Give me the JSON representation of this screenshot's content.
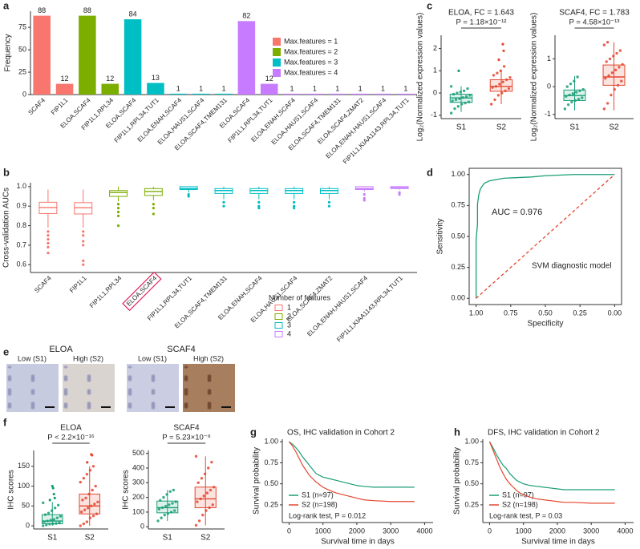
{
  "chart_data": [
    {
      "type": "bar",
      "panel": "a",
      "y_label": "Frequency",
      "categories": [
        "SCAF4",
        "FIP1L1",
        "ELOA,SCAF4",
        "FIP1L1,RPL34",
        "ELOA,SCAF4",
        "FIP1L1,RPL34,TUT1",
        "ELOA,ENAH,SCAF4",
        "ELOA,HAUS1,SCAF4",
        "ELOA,SCAF4,TMEM131",
        "ELOA,SCAF4",
        "FIP1L1,RPL34,TUT1",
        "ELOA,ENAH,SCAF4",
        "ELOA,HAUS1,SCAF4",
        "ELOA,SCAF4,TMEM131",
        "ELOA,SCAF4,ZMAT2",
        "ELOA,ENAH,HAUS1,SCAF4",
        "FIP1L1,KIAA1143,RPL34,TUT1"
      ],
      "values": [
        88,
        12,
        88,
        12,
        84,
        13,
        1,
        1,
        1,
        82,
        12,
        1,
        1,
        1,
        1,
        1,
        1
      ],
      "colors": [
        "#F8766D",
        "#F8766D",
        "#7CAE00",
        "#7CAE00",
        "#00BFC4",
        "#00BFC4",
        "#00BFC4",
        "#00BFC4",
        "#00BFC4",
        "#C77CFF",
        "#C77CFF",
        "#C77CFF",
        "#C77CFF",
        "#C77CFF",
        "#C77CFF",
        "#C77CFF",
        "#C77CFF"
      ],
      "ylim": [
        0,
        93
      ],
      "yticks": [
        0,
        25,
        50,
        75
      ],
      "legend": [
        {
          "name": "Max.features = 1",
          "color": "#F8766D"
        },
        {
          "name": "Max.features = 2",
          "color": "#7CAE00"
        },
        {
          "name": "Max.features = 3",
          "color": "#00BFC4"
        },
        {
          "name": "Max.features = 4",
          "color": "#C77CFF"
        }
      ]
    },
    {
      "type": "box",
      "panel": "b",
      "y_label": "Cross-validation AUCs",
      "categories": [
        "SCAF4",
        "FIP1L1",
        "FIP1L1,RPL34",
        "ELOA,SCAF4",
        "FIP1L1,RPL34,TUT1",
        "ELOA,SCAF4,TMEM131",
        "ELOA,ENAH,SCAF4",
        "ELOA,HAUS1,SCAF4",
        "ELOA,SCAF4,ZMAT2",
        "ELOA,ENAH,HAUS1,SCAF4",
        "FIP1L1,KIAA1143,RPL34,TUT1"
      ],
      "colors": [
        "#F8766D",
        "#F8766D",
        "#7CAE00",
        "#7CAE00",
        "#00BFC4",
        "#00BFC4",
        "#00BFC4",
        "#00BFC4",
        "#00BFC4",
        "#C77CFF",
        "#C77CFF"
      ],
      "boxes": [
        {
          "low": 0.79,
          "q1": 0.862,
          "median": 0.893,
          "q3": 0.92,
          "high": 0.985,
          "outliers": [
            0.77,
            0.75,
            0.73,
            0.71,
            0.69,
            0.66
          ]
        },
        {
          "low": 0.79,
          "q1": 0.86,
          "median": 0.892,
          "q3": 0.918,
          "high": 0.985,
          "outliers": [
            0.77,
            0.75,
            0.72,
            0.7,
            0.62,
            0.6
          ]
        },
        {
          "low": 0.925,
          "q1": 0.95,
          "median": 0.97,
          "q3": 0.98,
          "high": 1,
          "outliers": [
            0.91,
            0.89,
            0.87,
            0.85,
            0.8
          ]
        },
        {
          "low": 0.93,
          "q1": 0.955,
          "median": 0.975,
          "q3": 0.99,
          "high": 1,
          "outliers": [
            0.91,
            0.89,
            0.86
          ]
        },
        {
          "low": 0.97,
          "q1": 0.985,
          "median": 0.99,
          "q3": 1,
          "high": 1,
          "outliers": [
            0.96,
            0.95
          ]
        },
        {
          "low": 0.935,
          "q1": 0.965,
          "median": 0.98,
          "q3": 0.99,
          "high": 1,
          "outliers": [
            0.92,
            0.9
          ]
        },
        {
          "low": 0.935,
          "q1": 0.965,
          "median": 0.98,
          "q3": 0.99,
          "high": 1,
          "outliers": [
            0.92,
            0.9,
            0.89
          ]
        },
        {
          "low": 0.935,
          "q1": 0.965,
          "median": 0.98,
          "q3": 0.99,
          "high": 1,
          "outliers": [
            0.92,
            0.9,
            0.89
          ]
        },
        {
          "low": 0.935,
          "q1": 0.965,
          "median": 0.98,
          "q3": 0.99,
          "high": 1,
          "outliers": [
            0.92,
            0.9
          ]
        },
        {
          "low": 0.975,
          "q1": 0.985,
          "median": 0.99,
          "q3": 1,
          "high": 1,
          "outliers": [
            0.96,
            0.94,
            0.93
          ]
        },
        {
          "low": 0.985,
          "q1": 0.99,
          "median": 0.995,
          "q3": 1,
          "high": 1,
          "outliers": [
            0.97,
            0.96
          ]
        }
      ],
      "highlight": 3,
      "ylim": [
        0.56,
        1.02
      ],
      "yticks": [
        0.6,
        0.7,
        0.8,
        0.9,
        {
          "value": 1,
          "label": "1.0"
        }
      ],
      "legend_title": "Number of features",
      "legend": [
        {
          "name": "1",
          "color": "#F8766D"
        },
        {
          "name": "2",
          "color": "#7CAE00"
        },
        {
          "name": "3",
          "color": "#00BFC4"
        },
        {
          "name": "4",
          "color": "#C77CFF"
        }
      ]
    },
    {
      "type": "box_jitter",
      "panel": "c",
      "title": "ELOA, FC = 1.643",
      "annotation": "P = 1.18×10⁻¹²",
      "y_label": "Log₂(Normalized expression values)",
      "categories": [
        "S1",
        "S2"
      ],
      "colors": [
        "#1A9E77",
        "#E4472F"
      ],
      "boxes": [
        {
          "low": -0.85,
          "q1": -0.42,
          "median": -0.22,
          "q3": -0.05,
          "high": 0.3,
          "outliers": [
            1.0
          ]
        },
        {
          "low": -0.5,
          "q1": 0.08,
          "median": 0.3,
          "q3": 0.6,
          "high": 1.05,
          "outliers": [
            1.5,
            1.9,
            2.2
          ]
        }
      ],
      "points": [
        [
          -0.9,
          -0.7,
          -0.6,
          -0.5,
          -0.45,
          -0.4,
          -0.35,
          -0.3,
          -0.25,
          -0.2,
          -0.15,
          -0.1,
          -0.05,
          0,
          0.05,
          0.1,
          0.2,
          0.3
        ],
        [
          -0.5,
          -0.3,
          -0.1,
          0,
          0.1,
          0.2,
          0.25,
          0.3,
          0.4,
          0.5,
          0.6,
          0.7,
          0.8,
          0.9,
          1.0,
          1.2
        ]
      ],
      "ylim": [
        -1.15,
        2.6
      ],
      "yticks": [
        -1,
        0,
        1,
        2
      ]
    },
    {
      "type": "box_jitter",
      "title": "SCAF4, FC = 1.783",
      "annotation": "P = 4.58×10⁻¹³",
      "y_label": "Log₂(Normalized expression values)",
      "categories": [
        "S1",
        "S2"
      ],
      "colors": [
        "#1A9E77",
        "#E4472F"
      ],
      "boxes": [
        {
          "low": -0.85,
          "q1": -0.5,
          "median": -0.32,
          "q3": -0.12,
          "high": 0.38,
          "outliers": []
        },
        {
          "low": -0.85,
          "q1": 0.05,
          "median": 0.35,
          "q3": 0.78,
          "high": 1.6,
          "outliers": []
        }
      ],
      "points": [
        [
          -0.8,
          -0.65,
          -0.55,
          -0.5,
          -0.45,
          -0.4,
          -0.35,
          -0.3,
          -0.25,
          -0.2,
          -0.15,
          -0.1,
          0,
          0.1,
          0.2,
          0.35
        ],
        [
          -0.8,
          -0.6,
          -0.3,
          -0.1,
          0.05,
          0.2,
          0.3,
          0.4,
          0.5,
          0.6,
          0.7,
          0.8,
          0.9,
          1.0,
          1.1,
          1.2,
          1.3,
          1.5,
          1.6
        ]
      ],
      "ylim": [
        -1.15,
        1.85
      ],
      "yticks": [
        -1,
        0,
        1
      ]
    },
    {
      "type": "line",
      "panel": "d",
      "x_label": "Specificity",
      "y_label": "Sensitivity",
      "annotation": "AUC = 0.976",
      "model_label": "SVM diagnostic model",
      "series": [
        {
          "color": "#1A9E77",
          "dash": false,
          "x": [
            1,
            1,
            0.99,
            0.99,
            0.98,
            0.97,
            0.96,
            0.94,
            0.9,
            0.8,
            0.6,
            0.5,
            0.3,
            0.1,
            0
          ],
          "y": [
            0,
            0.47,
            0.6,
            0.76,
            0.84,
            0.88,
            0.9,
            0.93,
            0.95,
            0.97,
            0.98,
            0.99,
            1,
            1,
            1
          ]
        },
        {
          "color": "#E4472F",
          "dash": true,
          "x": [
            1,
            0
          ],
          "y": [
            0,
            1
          ]
        }
      ],
      "xlim": [
        1.05,
        -0.05
      ],
      "xticks": [
        {
          "value": 1,
          "label": "1.00"
        },
        0.75,
        {
          "value": 0.5,
          "label": "0.50"
        },
        0.25,
        {
          "value": 0,
          "label": "0.00"
        }
      ],
      "ylim": [
        -0.05,
        1.05
      ],
      "yticks": [
        {
          "value": 0,
          "label": "0.00"
        },
        0.25,
        {
          "value": 0.5,
          "label": "0.50"
        },
        0.75,
        {
          "value": 1,
          "label": "1.00"
        }
      ]
    },
    {
      "type": "image",
      "panel": "e",
      "groups": [
        {
          "title": "ELOA",
          "labels": [
            "Low (S1)",
            "High (S2)"
          ]
        },
        {
          "title": "SCAF4",
          "labels": [
            "Low (S1)",
            "High (S2)"
          ]
        }
      ]
    },
    {
      "type": "box_jitter",
      "panel": "f",
      "title": "ELOA",
      "annotation": "P < 2.2×10⁻¹⁶",
      "y_label": "IHC scores",
      "categories": [
        "S1",
        "S2"
      ],
      "colors": [
        "#1A9E77",
        "#E4472F"
      ],
      "boxes": [
        {
          "low": 0,
          "q1": 5,
          "median": 12,
          "q3": 28,
          "high": 60,
          "outliers": [
            65,
            70,
            80,
            95,
            100
          ]
        },
        {
          "low": 0,
          "q1": 30,
          "median": 50,
          "q3": 80,
          "high": 150,
          "outliers": [
            160,
            178,
            180
          ]
        }
      ],
      "points": [
        [
          0,
          2,
          4,
          5,
          6,
          8,
          10,
          12,
          14,
          16,
          20,
          24,
          28,
          32,
          38,
          45,
          52,
          58
        ],
        [
          0,
          5,
          10,
          20,
          25,
          30,
          35,
          40,
          45,
          50,
          55,
          60,
          65,
          70,
          80,
          90,
          100,
          110,
          120,
          130,
          140,
          150
        ]
      ],
      "ylim": [
        -8,
        190
      ],
      "yticks": [
        0,
        50,
        100,
        150
      ]
    },
    {
      "type": "box_jitter",
      "title": "SCAF4",
      "annotation": "P = 5.23×10⁻⁸",
      "y_label": "IHC scores",
      "categories": [
        "S1",
        "S2"
      ],
      "colors": [
        "#1A9E77",
        "#E4472F"
      ],
      "boxes": [
        {
          "low": 40,
          "q1": 95,
          "median": 130,
          "q3": 175,
          "high": 250,
          "outliers": []
        },
        {
          "low": 10,
          "q1": 130,
          "median": 190,
          "q3": 270,
          "high": 480,
          "outliers": []
        }
      ],
      "points": [
        [
          40,
          60,
          80,
          90,
          100,
          110,
          120,
          130,
          140,
          150,
          160,
          170,
          180,
          200,
          220,
          240,
          250
        ],
        [
          10,
          40,
          80,
          110,
          130,
          150,
          170,
          190,
          210,
          230,
          250,
          270,
          300,
          330,
          360,
          400,
          440,
          480
        ]
      ],
      "ylim": [
        -15,
        520
      ],
      "yticks": [
        0,
        100,
        200,
        300,
        400,
        500
      ]
    },
    {
      "type": "km",
      "panel": "g",
      "title": "OS, IHC validation in Cohort 2",
      "x_label": "Survival time in days",
      "y_label": "Survival probability",
      "annotation": "Log-rank test, P = 0.012",
      "series": [
        {
          "name": "S1 (n=97)",
          "color": "#1A9E77",
          "x": [
            0,
            100,
            200,
            300,
            400,
            500,
            600,
            700,
            800,
            900,
            1000,
            1200,
            1400,
            1600,
            1800,
            2000,
            2200,
            2500,
            3000,
            3700
          ],
          "y": [
            1,
            0.97,
            0.93,
            0.88,
            0.82,
            0.77,
            0.72,
            0.67,
            0.62,
            0.6,
            0.58,
            0.56,
            0.54,
            0.52,
            0.5,
            0.48,
            0.47,
            0.46,
            0.46,
            0.46
          ]
        },
        {
          "name": "S2 (n=198)",
          "color": "#E4472F",
          "x": [
            0,
            100,
            200,
            300,
            400,
            500,
            600,
            700,
            800,
            900,
            1000,
            1200,
            1400,
            1600,
            1800,
            2000,
            2200,
            2500,
            3000,
            3700
          ],
          "y": [
            1,
            0.95,
            0.88,
            0.8,
            0.72,
            0.66,
            0.6,
            0.56,
            0.52,
            0.49,
            0.46,
            0.42,
            0.39,
            0.37,
            0.35,
            0.33,
            0.31,
            0.3,
            0.29,
            0.29
          ]
        }
      ],
      "xlim": [
        -200,
        4250
      ],
      "xticks": [
        0,
        1000,
        2000,
        3000,
        4000
      ],
      "ylim": [
        0.04,
        1.03
      ],
      "yticks": [
        0.25,
        {
          "value": 0.5,
          "label": "0.50"
        },
        0.75,
        {
          "value": 1,
          "label": "1.00"
        }
      ]
    },
    {
      "type": "km",
      "panel": "h",
      "title": "DFS, IHC validation in Cohort 2",
      "x_label": "Survival time in days",
      "y_label": "Survival probability",
      "annotation": "Log-rank test, P = 0.03",
      "series": [
        {
          "name": "S1 (n=97)",
          "color": "#1A9E77",
          "x": [
            0,
            100,
            200,
            300,
            400,
            500,
            600,
            700,
            800,
            900,
            1000,
            1200,
            1400,
            1600,
            1800,
            2000,
            2200,
            2500,
            3000,
            3700
          ],
          "y": [
            1,
            0.93,
            0.85,
            0.78,
            0.72,
            0.68,
            0.62,
            0.58,
            0.54,
            0.52,
            0.5,
            0.48,
            0.47,
            0.46,
            0.45,
            0.44,
            0.43,
            0.43,
            0.43,
            0.43
          ]
        },
        {
          "name": "S2 (n=198)",
          "color": "#E4472F",
          "x": [
            0,
            100,
            200,
            300,
            400,
            500,
            600,
            700,
            800,
            900,
            1000,
            1200,
            1400,
            1600,
            1800,
            2000,
            2200,
            2500,
            3000,
            3700
          ],
          "y": [
            1,
            0.9,
            0.8,
            0.7,
            0.62,
            0.55,
            0.5,
            0.46,
            0.42,
            0.39,
            0.37,
            0.34,
            0.32,
            0.31,
            0.3,
            0.29,
            0.28,
            0.28,
            0.27,
            0.27
          ]
        }
      ],
      "xlim": [
        -200,
        4250
      ],
      "xticks": [
        0,
        1000,
        2000,
        3000,
        4000
      ],
      "ylim": [
        0.04,
        1.03
      ],
      "yticks": [
        0.25,
        {
          "value": 0.5,
          "label": "0.50"
        },
        0.75,
        {
          "value": 1,
          "label": "1.00"
        }
      ]
    }
  ]
}
